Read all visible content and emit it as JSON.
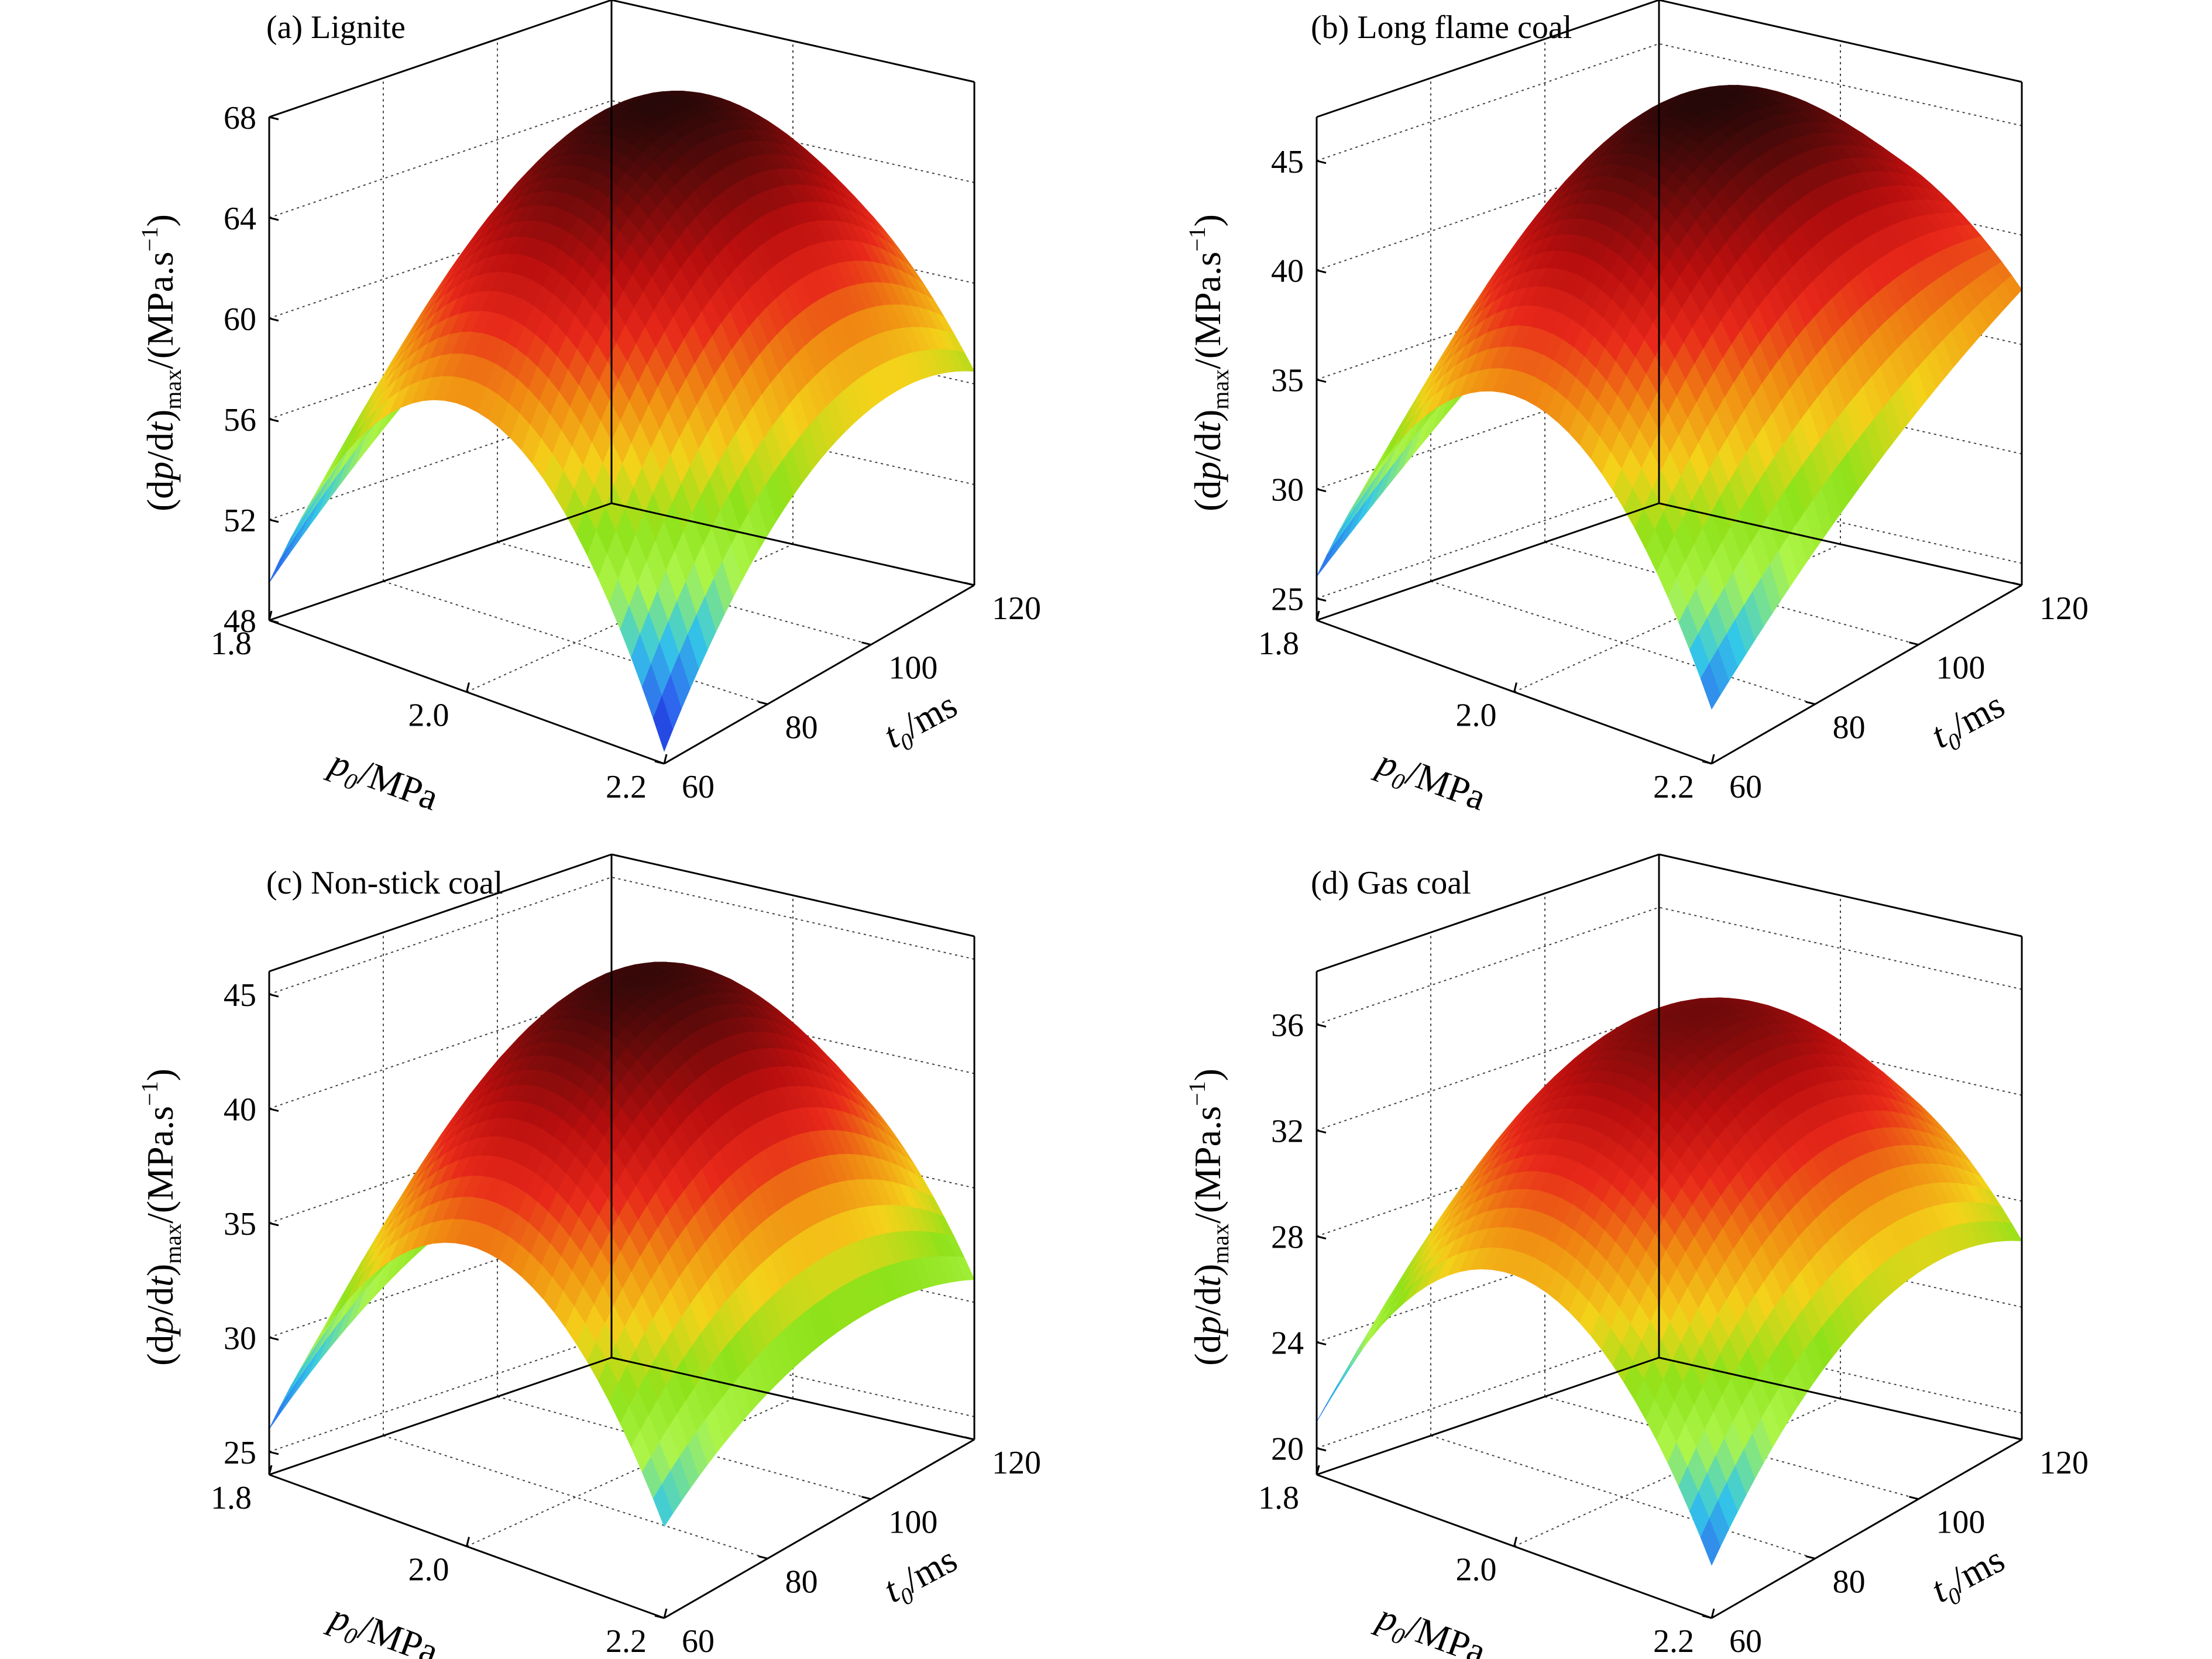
{
  "colors": {
    "colormap": [
      "#1010cc",
      "#2e63ee",
      "#34c8e8",
      "#aef54a",
      "#8ee21a",
      "#f4d21a",
      "#f08a12",
      "#e8281a",
      "#b80e0e",
      "#6e0a0a",
      "#260808"
    ],
    "edge_line": "#000000",
    "grid": "#444444"
  },
  "common_axes": {
    "p0_label_main": "p",
    "p0_label_sub": "0",
    "p0_label_rest": "/MPa",
    "p0_ticks": [
      "1.8",
      "2.0",
      "2.2"
    ],
    "t0_label_main": "t",
    "t0_label_sub": "0",
    "t0_label_rest": "/ms",
    "t0_ticks": [
      "60",
      "80",
      "100",
      "120"
    ],
    "z_label_pre": "(d",
    "z_label_p": "p",
    "z_label_mid": "/d",
    "z_label_t": "t",
    "z_label_close": ")",
    "z_label_sub": "max",
    "z_label_post": "/(MPa.s",
    "z_label_sup": "−1",
    "z_label_end": ")"
  },
  "chart_data": [
    {
      "type": "surface",
      "title": "(a) Lignite",
      "xlabel": "p0/MPa",
      "ylabel": "t0/ms",
      "zlabel": "(dp/dt)max/(MPa.s−1)",
      "x_range": [
        1.8,
        2.2
      ],
      "y_range": [
        60,
        120
      ],
      "zlim": [
        48,
        68
      ],
      "z_ticks": [
        "48",
        "52",
        "56",
        "60",
        "64",
        "68"
      ],
      "grid": true,
      "peak": 67.8,
      "corners": {
        "p_min_t_min": 49.5,
        "p_max_t_min": 48.5,
        "p_min_t_max": 60.5,
        "p_max_t_max": 56.5
      },
      "mid_edges": {
        "p_min_t_mid": 56.0,
        "p_max_t_mid": 56.5
      }
    },
    {
      "type": "surface",
      "title": "(b) Long flame coal",
      "xlabel": "p0/MPa",
      "ylabel": "t0/ms",
      "zlabel": "(dp/dt)max/(MPa.s−1)",
      "x_range": [
        1.8,
        2.2
      ],
      "y_range": [
        60,
        120
      ],
      "zlim": [
        24,
        47
      ],
      "z_ticks": [
        "25",
        "30",
        "35",
        "40",
        "45"
      ],
      "grid": true,
      "peak": 46.8,
      "corners": {
        "p_min_t_min": 26.0,
        "p_max_t_min": 26.5,
        "p_min_t_max": 39.0,
        "p_max_t_max": 37.5
      },
      "mid_edges": {
        "p_min_t_mid": 33.0,
        "p_max_t_mid": 33.0
      }
    },
    {
      "type": "surface",
      "title": "(c) Non-stick coal",
      "xlabel": "p0/MPa",
      "ylabel": "t0/ms",
      "zlabel": "(dp/dt)max/(MPa.s−1)",
      "x_range": [
        1.8,
        2.2
      ],
      "y_range": [
        60,
        120
      ],
      "zlim": [
        24,
        46
      ],
      "z_ticks": [
        "25",
        "30",
        "35",
        "40",
        "45"
      ],
      "grid": true,
      "peak": 45.5,
      "corners": {
        "p_min_t_min": 26.0,
        "p_max_t_min": 28.0,
        "p_min_t_max": 33.5,
        "p_max_t_max": 31.0
      },
      "mid_edges": {
        "p_min_t_mid": 32.0,
        "p_max_t_mid": 32.0
      }
    },
    {
      "type": "surface",
      "title": "(d) Gas coal",
      "xlabel": "p0/MPa",
      "ylabel": "t0/ms",
      "zlabel": "(dp/dt)max/(MPa.s−1)",
      "x_range": [
        1.8,
        2.2
      ],
      "y_range": [
        60,
        120
      ],
      "zlim": [
        19,
        38
      ],
      "z_ticks": [
        "20",
        "24",
        "28",
        "32",
        "36"
      ],
      "grid": true,
      "peak": 36.0,
      "corners": {
        "p_min_t_min": 21.0,
        "p_max_t_min": 21.0,
        "p_min_t_max": 27.5,
        "p_max_t_max": 26.5
      },
      "mid_edges": {
        "p_min_t_mid": 27.0,
        "p_max_t_mid": 27.0
      }
    }
  ]
}
